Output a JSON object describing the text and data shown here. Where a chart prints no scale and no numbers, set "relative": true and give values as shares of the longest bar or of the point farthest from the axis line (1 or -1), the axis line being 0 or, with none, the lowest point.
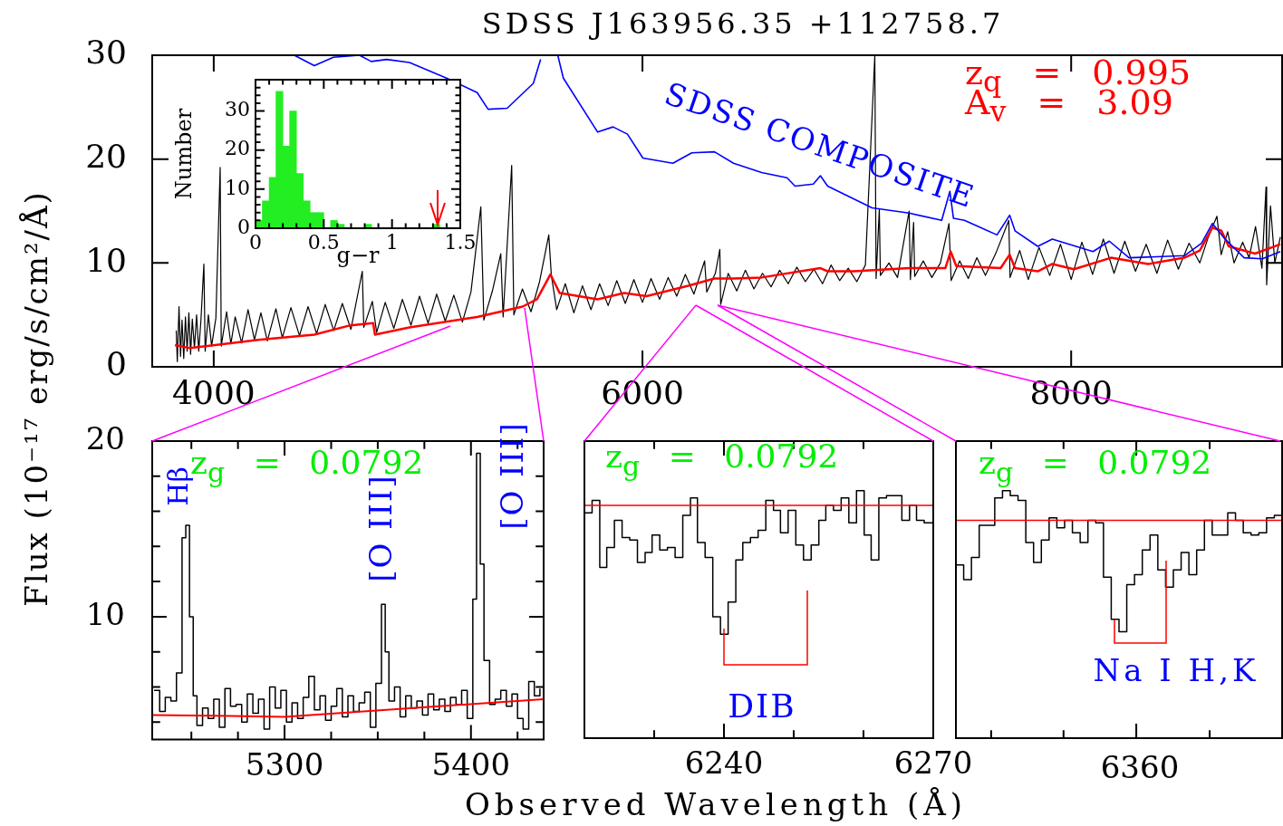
{
  "chart_data": [
    {
      "type": "line",
      "title": "SDSS J163956.35 +112758.7",
      "ylabel": "Flux (10⁻¹⁷ erg/s/cm²/Å)",
      "xlim": [
        3713,
        8984
      ],
      "xticks": [
        4000,
        6000,
        8000
      ],
      "ylim": [
        0,
        30
      ],
      "yticks": [
        0,
        10,
        20,
        30
      ],
      "annotations": [
        "z$_{q}$ = 0.995",
        "A$_{v}$ = 3.09"
      ],
      "series": [
        {
          "color": "#000000",
          "x": [
            3825,
            3830,
            3838,
            3845,
            3852,
            3860,
            3868,
            3876,
            3884,
            3892,
            3900,
            3910,
            3920,
            3930,
            3940,
            3954,
            3960,
            3975,
            3990,
            4010,
            4030,
            4035,
            4060,
            4080,
            4100,
            4130,
            4160,
            4190,
            4220,
            4250,
            4290,
            4320,
            4360,
            4400,
            4440,
            4480,
            4520,
            4560,
            4600,
            4640,
            4693,
            4700,
            4740,
            4760,
            4800,
            4840,
            4880,
            4920,
            4960,
            5000,
            5040,
            5080,
            5120,
            5160,
            5200,
            5246,
            5260,
            5300,
            5339,
            5350,
            5390,
            5400,
            5440,
            5480,
            5520,
            5563,
            5575,
            5600,
            5640,
            5680,
            5720,
            5760,
            5800,
            5840,
            5880,
            5920,
            5960,
            6000,
            6040,
            6080,
            6120,
            6160,
            6200,
            6240,
            6290,
            6300,
            6340,
            6361,
            6365,
            6400,
            6440,
            6480,
            6520,
            6560,
            6600,
            6640,
            6680,
            6720,
            6760,
            6800,
            6840,
            6880,
            6920,
            6960,
            7000,
            7040,
            7084,
            7090,
            7105,
            7110,
            7150,
            7190,
            7244,
            7250,
            7265,
            7270,
            7310,
            7350,
            7390,
            7430,
            7440,
            7480,
            7520,
            7560,
            7600,
            7650,
            7709,
            7715,
            7760,
            7800,
            7850,
            7900,
            7950,
            8000,
            8050,
            8100,
            8150,
            8200,
            8250,
            8300,
            8350,
            8400,
            8450,
            8500,
            8550,
            8600,
            8640,
            8680,
            8700,
            8730,
            8760,
            8800,
            8830,
            8860,
            8890,
            8909,
            8912,
            8930,
            8950,
            8976
          ],
          "values": [
            3.5,
            0.5,
            5.8,
            1.0,
            4.5,
            0.8,
            4.8,
            1.5,
            5.2,
            1.2,
            4.6,
            1.8,
            5.0,
            1.5,
            4.4,
            9.9,
            1.5,
            5.0,
            2.0,
            4.7,
            19.2,
            2.0,
            5.3,
            2.2,
            4.8,
            2.3,
            5.5,
            2.6,
            5.2,
            2.5,
            5.6,
            2.8,
            5.7,
            3.0,
            5.8,
            3.2,
            6.0,
            3.5,
            6.1,
            3.6,
            9.2,
            3.8,
            6.3,
            3.3,
            6.2,
            3.7,
            6.5,
            4.0,
            6.8,
            4.2,
            7.0,
            4.4,
            6.9,
            4.3,
            7.2,
            15.4,
            4.5,
            7.3,
            10.9,
            4.8,
            19.4,
            5.0,
            7.5,
            5.3,
            8.2,
            12.7,
            8.8,
            5.5,
            8.0,
            5.2,
            7.8,
            5.5,
            8.0,
            5.9,
            8.3,
            6.1,
            8.4,
            6.2,
            8.5,
            6.5,
            8.6,
            6.8,
            8.9,
            7.0,
            10.2,
            7.2,
            9.0,
            11.3,
            6.0,
            9.0,
            7.3,
            9.3,
            7.5,
            9.0,
            7.7,
            9.3,
            8.0,
            9.6,
            8.2,
            9.4,
            8.0,
            9.8,
            8.3,
            9.5,
            8.2,
            9.8,
            30,
            8.5,
            15.2,
            8.8,
            10.0,
            8.6,
            15.0,
            8.4,
            13.9,
            8.7,
            10.2,
            8.6,
            10.0,
            13.8,
            8.3,
            10.2,
            8.5,
            10.5,
            8.8,
            11.0,
            14.1,
            8.6,
            11.2,
            8.4,
            11.5,
            8.8,
            11.8,
            8.4,
            12.0,
            8.9,
            12.3,
            9.0,
            12.1,
            9.2,
            11.8,
            9.0,
            12.2,
            9.4,
            11.9,
            10.0,
            12.5,
            14.5,
            10.8,
            13.0,
            10.0,
            12.0,
            10.5,
            13.5,
            9.5,
            17.3,
            7.9,
            15.5,
            10.0,
            12.5
          ]
        },
        {
          "color": "#ff0000",
          "x": [
            3819,
            3890,
            4207,
            4469,
            4638,
            4744,
            4752,
            4913,
            5229,
            5441,
            5508,
            5571,
            5614,
            5791,
            5914,
            6019,
            6214,
            6336,
            6425,
            6556,
            6830,
            6864,
            6987,
            7244,
            7413,
            7438,
            7464,
            7671,
            7713,
            7738,
            7844,
            7912,
            8013,
            8186,
            8359,
            8528,
            8600,
            8659,
            8701,
            8735,
            8858,
            8976
          ],
          "values": [
            2.1,
            1.8,
            2.6,
            3.1,
            4.0,
            4.2,
            3.1,
            3.8,
            4.8,
            5.8,
            6.5,
            8.9,
            7.1,
            6.5,
            7.1,
            6.8,
            7.8,
            8.5,
            8.5,
            8.6,
            9.5,
            9.2,
            9.2,
            9.5,
            9.5,
            11.1,
            9.7,
            9.5,
            10.8,
            9.5,
            9.2,
            9.9,
            9.4,
            10.5,
            9.9,
            10.5,
            11.2,
            13.4,
            13.1,
            11.6,
            10.9,
            11.8
          ]
        },
        {
          "name": "SDSS COMPOSITE",
          "color": "#0000ff",
          "x": [
            4376,
            4469,
            4558,
            4680,
            4735,
            4807,
            4913,
            5086,
            5229,
            5280,
            5369,
            5491,
            5525,
            5560,
            5605,
            5631,
            5791,
            5863,
            5930,
            6002,
            6142,
            6230,
            6336,
            6425,
            6556,
            6674,
            6712,
            6797,
            6830,
            6864,
            7071,
            7244,
            7396,
            7434,
            7451,
            7502,
            7654,
            7713,
            7738,
            7844,
            7912,
            8102,
            8178,
            8270,
            8528,
            8608,
            8659,
            8718,
            8807,
            8892,
            8976
          ],
          "values": [
            30,
            29.0,
            29.8,
            30,
            29.4,
            29.6,
            29.3,
            27.8,
            26.4,
            24.8,
            24.9,
            27.3,
            29.6,
            null,
            30,
            27.8,
            22.6,
            23.1,
            22.4,
            20.1,
            19.6,
            20.6,
            20.7,
            19.6,
            18.7,
            18.2,
            17.4,
            17.6,
            18.4,
            17.4,
            15.3,
            14.8,
            14.1,
            16.9,
            14.3,
            14.1,
            12.7,
            14.6,
            13.1,
            11.6,
            12.3,
            11.1,
            12.1,
            10.5,
            10.7,
            11.9,
            13.8,
            12.3,
            10.5,
            10.4,
            11.1
          ]
        }
      ]
    },
    {
      "type": "histogram",
      "xlabel": "g−r",
      "ylabel": "Number",
      "color": "#22ee22",
      "bins": [
        0,
        0.05,
        0.1,
        0.15,
        0.2,
        0.25,
        0.3,
        0.35,
        0.4,
        0.45,
        0.5,
        0.55,
        0.6,
        0.65,
        0.7,
        0.75,
        0.8,
        0.85,
        0.9,
        0.95,
        1,
        1.05,
        1.1,
        1.15,
        1.2,
        1.25,
        1.3,
        1.35,
        1.4,
        1.45,
        1.5
      ],
      "values": [
        2,
        7,
        13,
        35,
        21,
        30,
        14,
        7,
        4,
        4,
        0,
        2,
        1,
        0,
        0,
        0,
        1,
        0,
        0,
        0,
        0,
        0,
        0,
        0,
        0,
        0,
        1,
        0,
        0,
        0
      ],
      "xlim": [
        0,
        1.5
      ],
      "xticks": [
        0,
        {
          "value": 0.1,
          "label": null
        },
        {
          "value": 0.2,
          "label": null
        },
        {
          "value": 0.3,
          "label": null
        },
        {
          "value": 0.4,
          "label": null
        },
        0.5,
        {
          "value": 0.6,
          "label": null
        },
        {
          "value": 0.7,
          "label": null
        },
        {
          "value": 0.8,
          "label": null
        },
        {
          "value": 0.9,
          "label": null
        },
        1,
        {
          "value": 1.1,
          "label": null
        },
        {
          "value": 1.2,
          "label": null
        },
        {
          "value": 1.3,
          "label": null
        },
        {
          "value": 1.4,
          "label": null
        },
        1.5
      ],
      "ylim": [
        0,
        38
      ],
      "yticks": [
        0,
        {
          "value": 2,
          "label": null
        },
        {
          "value": 4,
          "label": null
        },
        {
          "value": 6,
          "label": null
        },
        {
          "value": 8,
          "label": null
        },
        10,
        {
          "value": 12,
          "label": null
        },
        {
          "value": 14,
          "label": null
        },
        {
          "value": 16,
          "label": null
        },
        {
          "value": 18,
          "label": null
        },
        20,
        {
          "value": 22,
          "label": null
        },
        {
          "value": 24,
          "label": null
        },
        {
          "value": 26,
          "label": null
        },
        {
          "value": 28,
          "label": null
        },
        30,
        {
          "value": 32,
          "label": null
        },
        {
          "value": 34,
          "label": null
        },
        {
          "value": 36,
          "label": null
        }
      ]
    },
    {
      "type": "step",
      "xlim": [
        5229,
        5439
      ],
      "xticks": [
        {
          "value": 5250,
          "label": null
        },
        {
          "value": 5275,
          "label": null
        },
        5300,
        {
          "value": 5325,
          "label": null
        },
        {
          "value": 5350,
          "label": null
        },
        {
          "value": 5375,
          "label": null
        },
        5400,
        {
          "value": 5425,
          "label": null
        }
      ],
      "ylim": [
        3,
        20
      ],
      "yticks": [
        {
          "value": 4,
          "label": null
        },
        {
          "value": 6,
          "label": null
        },
        {
          "value": 8,
          "label": null
        },
        10,
        {
          "value": 12,
          "label": null
        },
        {
          "value": 14,
          "label": null
        },
        {
          "value": 16,
          "label": null
        },
        {
          "value": 18,
          "label": null
        },
        20
      ],
      "annotations": [
        "z$_{g}$ = 0.0792",
        "Hβ",
        "[O III]",
        "[O III]"
      ],
      "series": [
        {
          "color": "#000000",
          "x": [
            5230,
            5233,
            5236,
            5239,
            5242,
            5245,
            5247,
            5249,
            5251,
            5253,
            5256,
            5259,
            5262,
            5265,
            5268,
            5271,
            5274,
            5277,
            5280,
            5283,
            5286,
            5289,
            5292,
            5295,
            5298,
            5301,
            5304,
            5307,
            5310,
            5313,
            5316,
            5319,
            5322,
            5325,
            5328,
            5331,
            5334,
            5337,
            5340,
            5343,
            5346,
            5349,
            5352,
            5354,
            5356,
            5359,
            5362,
            5365,
            5368,
            5371,
            5374,
            5377,
            5380,
            5383,
            5386,
            5389,
            5392,
            5395,
            5398,
            5401,
            5403,
            5405,
            5407,
            5410,
            5413,
            5416,
            5419,
            5422,
            5425,
            5428,
            5431,
            5434,
            5437
          ],
          "values": [
            5.8,
            4.6,
            5.4,
            5.2,
            6.8,
            14.5,
            15.2,
            10.0,
            5.5,
            3.8,
            4.8,
            4.2,
            5.3,
            3.7,
            5.9,
            4.9,
            5.0,
            4.0,
            5.6,
            4.5,
            5.3,
            3.6,
            6.0,
            4.8,
            5.8,
            4.0,
            5.1,
            4.2,
            5.4,
            6.6,
            4.7,
            5.5,
            4.1,
            4.9,
            5.9,
            4.3,
            5.5,
            4.6,
            5.1,
            5.7,
            3.7,
            6.2,
            10.7,
            8.0,
            5.2,
            6.0,
            4.3,
            5.5,
            4.8,
            5.2,
            4.4,
            5.6,
            4.7,
            5.3,
            4.6,
            5.4,
            5.0,
            5.8,
            4.2,
            11.0,
            19.3,
            13.0,
            7.5,
            5.0,
            5.3,
            5.8,
            4.9,
            5.6,
            4.2,
            3.6,
            6.3,
            5.5,
            5.9
          ]
        },
        {
          "type": "line",
          "color": "#ff0000",
          "x": [
            5229,
            5300,
            5439
          ],
          "values": [
            4.4,
            4.3,
            5.3
          ]
        }
      ]
    },
    {
      "type": "step",
      "relative": true,
      "tick_labels": "x",
      "xlabel": "Observed Wavelength (Å)",
      "xlim": [
        6220,
        6270
      ],
      "xticks": [
        {
          "value": 6230,
          "label": null
        },
        6240,
        {
          "value": 6250,
          "label": null
        },
        {
          "value": 6260,
          "label": null
        },
        6270
      ],
      "annotations": [
        "z$_{g}$ = 0.0792",
        "DIB"
      ],
      "series": [
        {
          "color": "#000000",
          "x": [
            6220.0,
            6221.1,
            6222.2,
            6223.2,
            6224.3,
            6225.4,
            6226.5,
            6227.6,
            6228.7,
            6229.7,
            6230.8,
            6231.9,
            6233.0,
            6234.1,
            6235.2,
            6236.2,
            6237.3,
            6238.4,
            6239.5,
            6240.6,
            6241.7,
            6242.7,
            6243.8,
            6244.9,
            6246.0,
            6247.1,
            6248.1,
            6249.2,
            6250.3,
            6251.4,
            6252.5,
            6253.6,
            6254.6,
            6255.7,
            6256.8,
            6257.9,
            6259.0,
            6260.1,
            6261.1,
            6262.2,
            6263.3,
            6264.4,
            6265.5,
            6266.6,
            6267.6,
            6268.7,
            6270
          ],
          "values": [
            0.91,
            0.96,
            0.69,
            0.77,
            0.88,
            0.81,
            0.8,
            0.71,
            0.75,
            0.82,
            0.76,
            0.77,
            0.73,
            0.9,
            0.97,
            0.79,
            0.73,
            0.49,
            0.42,
            0.55,
            0.72,
            0.79,
            0.81,
            0.84,
            0.96,
            0.92,
            0.83,
            0.92,
            0.78,
            0.72,
            0.78,
            0.88,
            0.94,
            0.92,
            0.97,
            0.87,
            1.0,
            0.82,
            0.72,
            0.97,
            0.98,
            0.98,
            0.88,
            0.94,
            0.88,
            0.87,
            0.87
          ]
        },
        {
          "type": "line",
          "color": "#ff0000",
          "x": [
            6220,
            6270
          ],
          "values": [
            0.94,
            0.94
          ]
        }
      ]
    },
    {
      "type": "step",
      "relative": true,
      "tick_labels": "x",
      "categories": [
        null,
        null,
        null,
        null,
        null,
        null,
        null,
        null,
        null,
        null,
        null,
        null,
        null,
        null,
        null,
        null,
        null,
        null,
        null,
        null,
        null,
        null,
        null,
        null,
        null,
        null,
        null,
        null,
        null,
        null,
        null,
        null,
        null,
        null,
        null,
        null,
        null,
        null,
        null,
        null,
        null,
        null,
        null
      ],
      "annotations": [
        "z$_{g}$ = 0.0792",
        "Na I H,K",
        "6360"
      ],
      "series": [
        {
          "color": "#000000",
          "values": [
            0.7,
            0.64,
            0.73,
            0.86,
            0.86,
            0.97,
            1.0,
            0.98,
            0.96,
            0.79,
            0.71,
            0.8,
            0.89,
            0.85,
            0.88,
            0.83,
            0.79,
            0.88,
            0.87,
            0.65,
            0.48,
            0.43,
            0.62,
            0.66,
            0.76,
            0.82,
            0.68,
            0.61,
            0.68,
            0.75,
            0.66,
            0.76,
            0.88,
            0.82,
            0.82,
            0.91,
            0.88,
            0.83,
            0.82,
            0.83,
            0.89,
            0.9,
            0.9
          ]
        },
        {
          "type": "line",
          "color": "#ff0000",
          "values": [
            0.88,
            0.88,
            0.88,
            0.88,
            0.88,
            0.88,
            0.88,
            0.88,
            0.88,
            0.88,
            0.88,
            0.88,
            0.88,
            0.88,
            0.88,
            0.88,
            0.88,
            0.88,
            0.88,
            0.88,
            0.88,
            0.88,
            0.88,
            0.88,
            0.88,
            0.88,
            0.88,
            0.88,
            0.88,
            0.88,
            0.88,
            0.88,
            0.88,
            0.88,
            0.88,
            0.88,
            0.88,
            0.88,
            0.88,
            0.88,
            0.88,
            0.88,
            0.88
          ]
        }
      ]
    }
  ]
}
